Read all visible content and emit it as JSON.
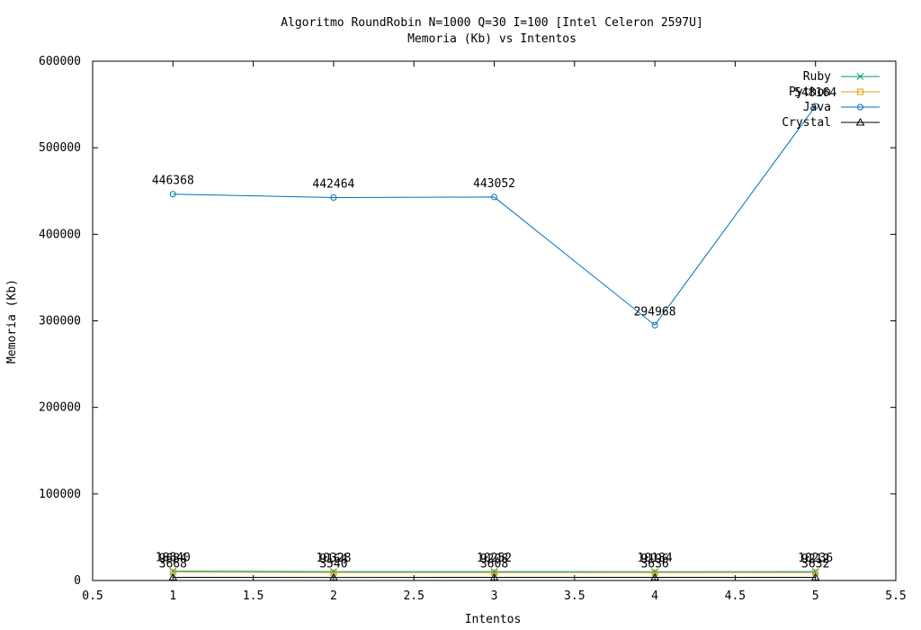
{
  "chart_data": {
    "type": "line",
    "title": "Algoritmo RoundRobin N=1000 Q=30 I=100 [Intel Celeron 2597U]",
    "subtitle": "Memoria (Kb) vs Intentos",
    "xlabel": "Intentos",
    "ylabel": "Memoria (Kb)",
    "xlim": [
      0.5,
      5.5
    ],
    "ylim": [
      0,
      600000
    ],
    "xticks": [
      "0.5",
      "1",
      "1.5",
      "2",
      "2.5",
      "3",
      "3.5",
      "4",
      "4.5",
      "5",
      "5.5"
    ],
    "yticks": [
      "0",
      "100000",
      "200000",
      "300000",
      "400000",
      "500000",
      "600000"
    ],
    "grid": false,
    "legend_position": "top-right",
    "x": [
      1,
      2,
      3,
      4,
      5
    ],
    "series": [
      {
        "name": "Ruby",
        "color": "#009e73",
        "marker": "cross",
        "values": [
          10840,
          10328,
          10252,
          10184,
          10236
        ]
      },
      {
        "name": "Python",
        "color": "#e69f00",
        "marker": "square",
        "values": [
          9684,
          9164,
          9208,
          9196,
          9212
        ]
      },
      {
        "name": "Java",
        "color": "#0072b2",
        "marker": "circle",
        "values": [
          446368,
          442464,
          443052,
          294968,
          548164
        ]
      },
      {
        "name": "Crystal",
        "color": "#000000",
        "marker": "triangle",
        "values": [
          3668,
          3540,
          3608,
          3636,
          3632
        ]
      }
    ]
  }
}
